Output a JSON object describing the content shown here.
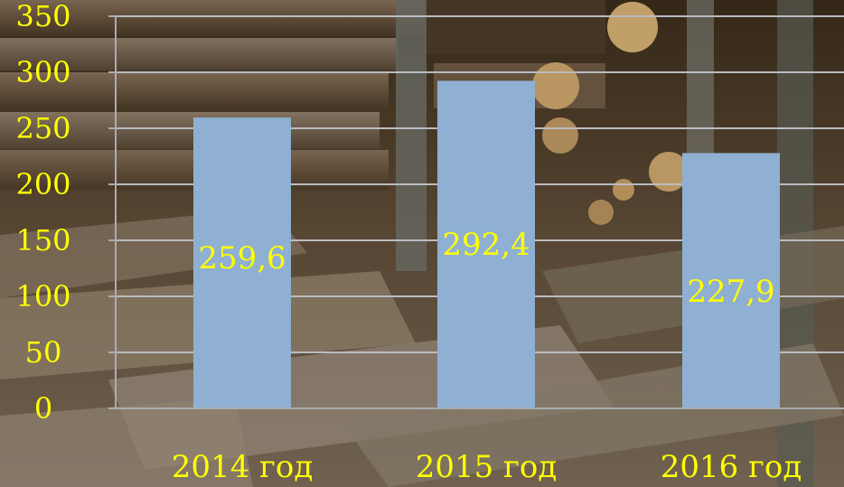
{
  "colors": {
    "bar": "#8fb0d2",
    "label": "#ffff00",
    "grid": "#b9bcc2",
    "axis": "#a9acb2"
  },
  "chart_data": {
    "type": "bar",
    "title": "",
    "xlabel": "",
    "ylabel": "",
    "categories": [
      "2014 год",
      "2015 год",
      "2016 год"
    ],
    "values": [
      259.6,
      292.4,
      227.9
    ],
    "value_labels": [
      "259,6",
      "292,4",
      "227,9"
    ],
    "y_ticks": [
      "0",
      "50",
      "100",
      "150",
      "200",
      "250",
      "300",
      "350"
    ],
    "ylim": [
      0,
      350
    ],
    "grid": true,
    "legend": "none"
  }
}
